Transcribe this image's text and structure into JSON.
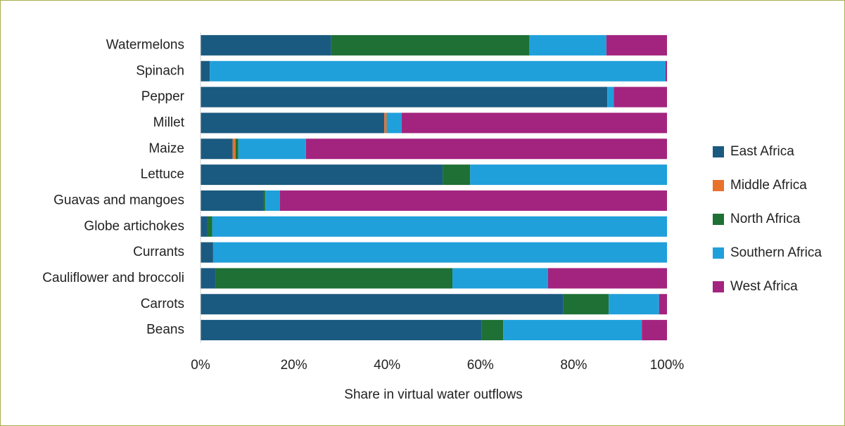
{
  "chart_data": {
    "type": "stacked-bar-horizontal",
    "x_label": "Share in virtual water outflows",
    "categories": [
      "Watermelons",
      "Spinach",
      "Pepper",
      "Millet",
      "Maize",
      "Lettuce",
      "Guavas and mangoes",
      "Globe artichokes",
      "Currants",
      "Cauliflower and broccoli",
      "Carrots",
      "Beans"
    ],
    "series": [
      {
        "name": "East Africa",
        "color": "#1b5a80",
        "values": [
          28,
          2,
          87.2,
          39.4,
          6.9,
          51.9,
          13.6,
          1.5,
          2.7,
          3.3,
          77.8,
          60.2
        ]
      },
      {
        "name": "Middle Africa",
        "color": "#e8712b",
        "values": [
          0,
          0,
          0,
          0.5,
          0.6,
          0,
          0,
          0,
          0,
          0,
          0,
          0
        ]
      },
      {
        "name": "North Africa",
        "color": "#1e7035",
        "values": [
          42.5,
          0,
          0,
          0,
          0.6,
          5.9,
          0.3,
          1,
          0,
          50.7,
          9.7,
          4.7
        ]
      },
      {
        "name": "Southern Africa",
        "color": "#20a0db",
        "values": [
          16.5,
          97.7,
          1.4,
          3.2,
          14.5,
          42.2,
          3.1,
          97.5,
          97.3,
          20.5,
          10.8,
          29.7
        ]
      },
      {
        "name": "West Africa",
        "color": "#a3247f",
        "values": [
          13,
          0.3,
          11.4,
          56.9,
          77.4,
          0,
          83,
          0,
          0,
          25.5,
          1.7,
          5.4
        ]
      }
    ],
    "xlim": [
      0,
      100
    ],
    "xticks": [
      {
        "value": 0,
        "label": "0%"
      },
      {
        "value": 20,
        "label": "20%"
      },
      {
        "value": 40,
        "label": "40%"
      },
      {
        "value": 60,
        "label": "60%"
      },
      {
        "value": 80,
        "label": "80%"
      },
      {
        "value": 100,
        "label": "100%"
      }
    ],
    "legend": "right"
  }
}
